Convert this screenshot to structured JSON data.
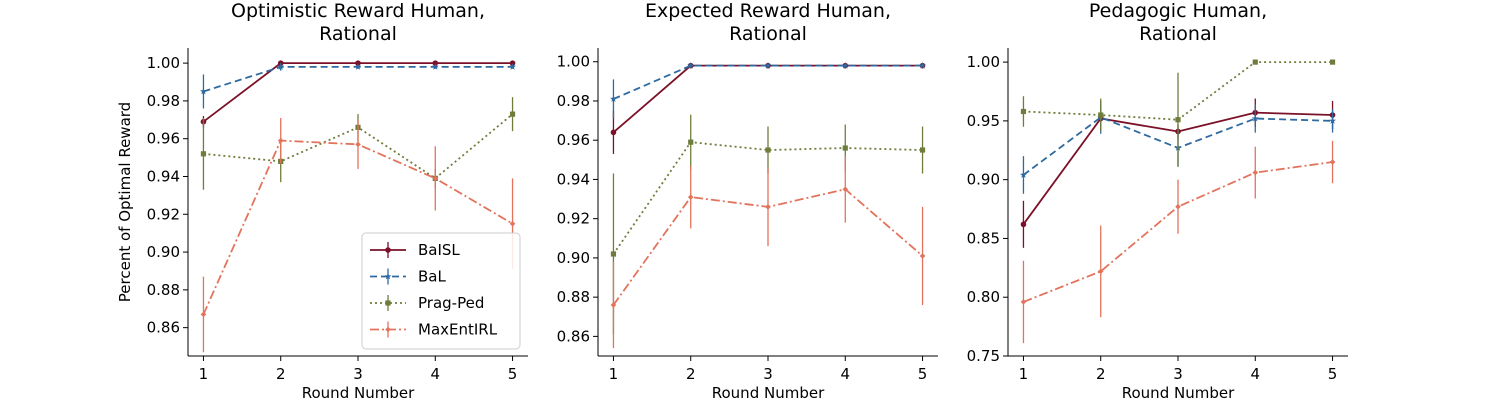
{
  "chart_data": [
    {
      "type": "line",
      "title": [
        "Optimistic Reward Human,",
        "Rational"
      ],
      "xlabel": "Round Number",
      "ylabel": "Percent of Optimal Reward",
      "x": [
        1,
        2,
        3,
        4,
        5
      ],
      "xlim": [
        0.8,
        5.2
      ],
      "ylim": [
        0.845,
        1.008
      ],
      "yticks": [
        "0.86",
        "0.88",
        "0.90",
        "0.92",
        "0.94",
        "0.96",
        "0.98",
        "1.00"
      ],
      "series": [
        {
          "name": "BaISL",
          "values": [
            0.969,
            1.0,
            1.0,
            1.0,
            1.0
          ],
          "err": [
            0.003,
            0.001,
            0.001,
            0.001,
            0.001
          ]
        },
        {
          "name": "BaL",
          "values": [
            0.985,
            0.998,
            0.998,
            0.998,
            0.998
          ],
          "err": [
            0.009,
            0.002,
            0.001,
            0.001,
            0.001
          ]
        },
        {
          "name": "Prag-Ped",
          "values": [
            0.952,
            0.948,
            0.966,
            0.939,
            0.973
          ],
          "err": [
            0.019,
            0.011,
            0.007,
            0.005,
            0.009
          ]
        },
        {
          "name": "MaxEntIRL",
          "values": [
            0.867,
            0.959,
            0.957,
            0.939,
            0.915
          ],
          "err": [
            0.02,
            0.012,
            0.013,
            0.017,
            0.024
          ]
        }
      ],
      "legend": "lower-right"
    },
    {
      "type": "line",
      "title": [
        "Expected Reward Human,",
        "Rational"
      ],
      "xlabel": "Round Number",
      "ylabel": "",
      "x": [
        1,
        2,
        3,
        4,
        5
      ],
      "xlim": [
        0.8,
        5.2
      ],
      "ylim": [
        0.85,
        1.007
      ],
      "yticks": [
        "0.86",
        "0.88",
        "0.90",
        "0.92",
        "0.94",
        "0.96",
        "0.98",
        "1.00"
      ],
      "series": [
        {
          "name": "BaISL",
          "values": [
            0.964,
            0.998,
            0.998,
            0.998,
            0.998
          ],
          "err": [
            0.011,
            0.001,
            0.001,
            0.001,
            0.001
          ]
        },
        {
          "name": "BaL",
          "values": [
            0.981,
            0.998,
            0.998,
            0.998,
            0.998
          ],
          "err": [
            0.01,
            0.001,
            0.001,
            0.001,
            0.001
          ]
        },
        {
          "name": "Prag-Ped",
          "values": [
            0.902,
            0.959,
            0.955,
            0.956,
            0.955
          ],
          "err": [
            0.041,
            0.014,
            0.012,
            0.012,
            0.012
          ]
        },
        {
          "name": "MaxEntIRL",
          "values": [
            0.876,
            0.931,
            0.926,
            0.935,
            0.901
          ],
          "err": [
            0.022,
            0.016,
            0.02,
            0.017,
            0.025
          ]
        }
      ]
    },
    {
      "type": "line",
      "title": [
        "Pedagogic Human,",
        "Rational"
      ],
      "xlabel": "Round Number",
      "ylabel": "",
      "x": [
        1,
        2,
        3,
        4,
        5
      ],
      "xlim": [
        0.8,
        5.2
      ],
      "ylim": [
        0.75,
        1.012
      ],
      "yticks": [
        "0.75",
        "0.80",
        "0.85",
        "0.90",
        "0.95",
        "1.00"
      ],
      "series": [
        {
          "name": "BaISL",
          "values": [
            0.862,
            0.952,
            0.941,
            0.957,
            0.955
          ],
          "err": [
            0.02,
            0.009,
            0.006,
            0.012,
            0.012
          ]
        },
        {
          "name": "BaL",
          "values": [
            0.904,
            0.953,
            0.927,
            0.952,
            0.95
          ],
          "err": [
            0.016,
            0.014,
            0.016,
            0.012,
            0.01
          ]
        },
        {
          "name": "Prag-Ped",
          "values": [
            0.958,
            0.955,
            0.951,
            1.0,
            1.0
          ],
          "err": [
            0.013,
            0.014,
            0.04,
            0.001,
            0.001
          ]
        },
        {
          "name": "MaxEntIRL",
          "values": [
            0.796,
            0.822,
            0.877,
            0.906,
            0.915
          ],
          "err": [
            0.035,
            0.039,
            0.023,
            0.022,
            0.018
          ]
        }
      ]
    }
  ],
  "styles": {
    "BaISL": {
      "color": "#7b1128",
      "dash": "",
      "marker": "circle"
    },
    "BaL": {
      "color": "#2e6aa1",
      "dash": "7,4",
      "marker": "star"
    },
    "Prag-Ped": {
      "color": "#6e7d3b",
      "dash": "2,3",
      "marker": "square"
    },
    "MaxEntIRL": {
      "color": "#e3735c",
      "dash": "9,3,2,3",
      "marker": "diamond"
    }
  }
}
